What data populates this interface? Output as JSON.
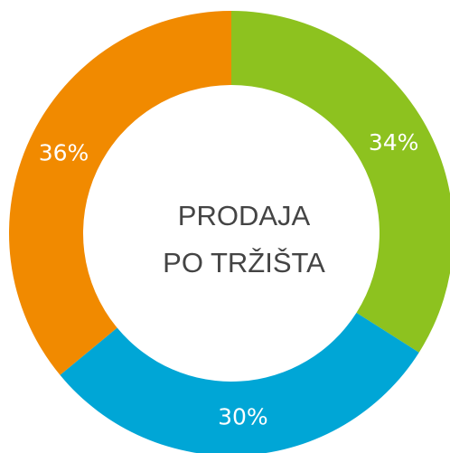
{
  "chart_data": {
    "type": "donut",
    "title": [
      "PRODAJA",
      "PO TRŽIŠTA"
    ],
    "categories": [
      null,
      null,
      null
    ],
    "values": [
      34,
      30,
      36
    ],
    "value_labels": [
      "34%",
      "30%",
      "36%"
    ],
    "colors": [
      "#8dc21f",
      "#00a6d6",
      "#f18a00"
    ]
  }
}
